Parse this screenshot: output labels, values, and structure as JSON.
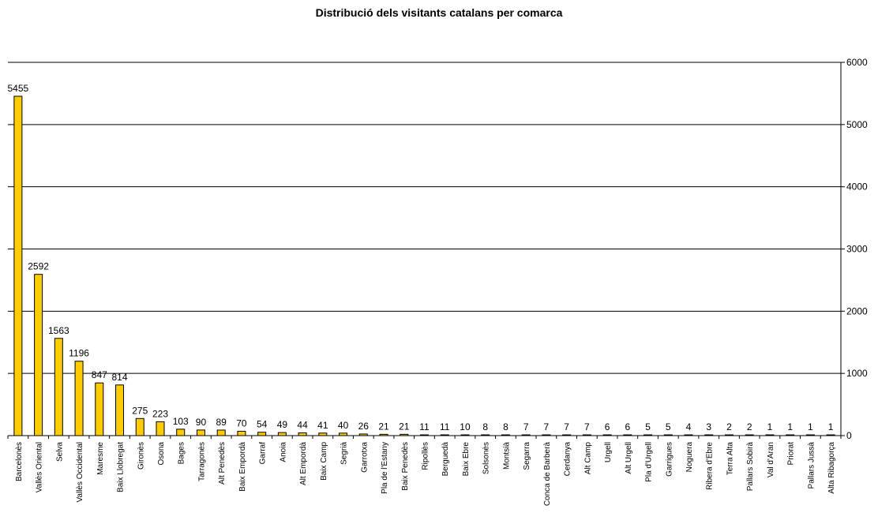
{
  "chart_data": {
    "type": "bar",
    "title": "Distribució dels visitants catalans per comarca",
    "xlabel": "",
    "ylabel": "",
    "ylim": [
      0,
      6000
    ],
    "yticks": [
      0,
      1000,
      2000,
      3000,
      4000,
      5000,
      6000
    ],
    "grid": true,
    "legend": "none",
    "y_axis_position": "right",
    "bar_color": "#FFCC00",
    "bar_edge_color": "#000000",
    "categories": [
      "Barcelonès",
      "Vallès Oriental",
      "Selva",
      "Vallès Occidental",
      "Maresme",
      "Baix Llobregat",
      "Gironès",
      "Osona",
      "Bages",
      "Tarragonès",
      "Alt Penedès",
      "Baix Empordà",
      "Garraf",
      "Anoia",
      "Alt Empordà",
      "Baix Camp",
      "Segrià",
      "Garrotxa",
      "Pla de l'Estany",
      "Baix Penedès",
      "Ripollès",
      "Berguedà",
      "Baix Ebre",
      "Solsonès",
      "Montsià",
      "Segarra",
      "Conca de Barberà",
      "Cerdanya",
      "Alt Camp",
      "Urgell",
      "Alt Urgell",
      "Pla d'Urgell",
      "Garrigues",
      "Noguera",
      "Ribera d'Ebre",
      "Terra Alta",
      "Pallars Sobirà",
      "Val d'Aran",
      "Priorat",
      "Pallars Jussà",
      "Alta Ribagorça"
    ],
    "values": [
      5455,
      2592,
      1563,
      1196,
      847,
      814,
      275,
      223,
      103,
      90,
      89,
      70,
      54,
      49,
      44,
      41,
      40,
      26,
      21,
      21,
      11,
      11,
      10,
      8,
      8,
      7,
      7,
      7,
      7,
      6,
      6,
      5,
      5,
      4,
      3,
      2,
      2,
      1,
      1,
      1,
      1
    ]
  }
}
